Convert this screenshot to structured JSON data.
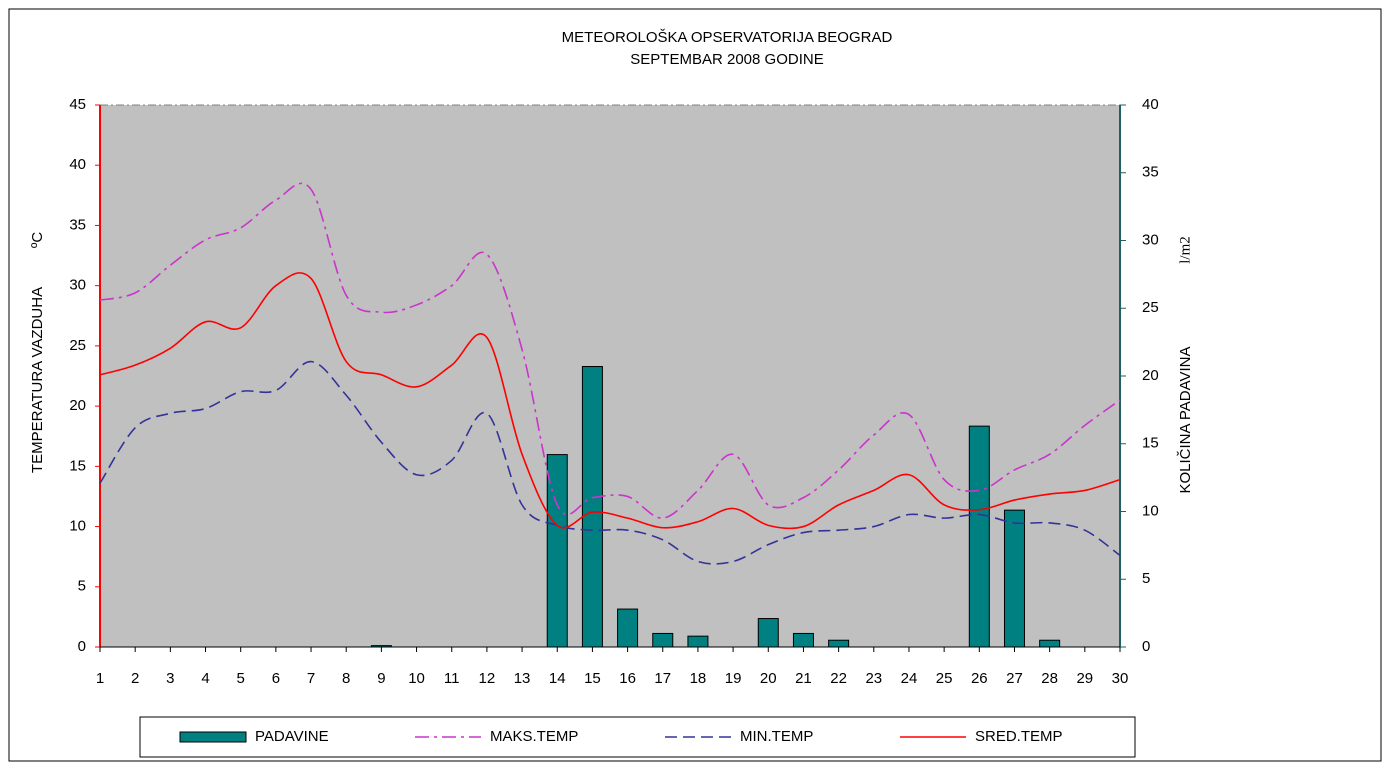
{
  "chart_data": {
    "type": "combo",
    "title": "METEOROLOŠKA OPSERVATORIJA BEOGRAD",
    "subtitle": "SEPTEMBAR 2008 GODINE",
    "ylabel": "TEMPERATURA VAZDUHA",
    "ylabel_unit": "ºC",
    "y2label": "KOLIČINA PADAVINA",
    "y2label_unit": "l/m2",
    "x": [
      1,
      2,
      3,
      4,
      5,
      6,
      7,
      8,
      9,
      10,
      11,
      12,
      13,
      14,
      15,
      16,
      17,
      18,
      19,
      20,
      21,
      22,
      23,
      24,
      25,
      26,
      27,
      28,
      29,
      30
    ],
    "xlim": [
      1,
      30
    ],
    "xticks": [
      1,
      2,
      3,
      4,
      5,
      6,
      7,
      8,
      9,
      10,
      11,
      12,
      13,
      14,
      15,
      16,
      17,
      18,
      19,
      20,
      21,
      22,
      23,
      24,
      25,
      26,
      27,
      28,
      29,
      30
    ],
    "ylim": [
      0,
      45
    ],
    "yticks": [
      0,
      5,
      10,
      15,
      20,
      25,
      30,
      35,
      40,
      45
    ],
    "y2lim": [
      0,
      40
    ],
    "y2ticks": [
      0,
      5,
      10,
      15,
      20,
      25,
      30,
      35,
      40
    ],
    "background": "#c0c0c0",
    "series": [
      {
        "name": "PADAVINE",
        "type": "bar",
        "axis": "y2",
        "color": "#008080",
        "values": [
          0,
          0,
          0,
          0,
          0,
          0,
          0,
          0,
          0.1,
          0,
          0,
          0,
          0,
          14.2,
          20.7,
          2.8,
          1.0,
          0.8,
          0,
          2.1,
          1.0,
          0.5,
          0,
          0,
          0,
          16.3,
          10.1,
          0.5,
          0,
          0
        ]
      },
      {
        "name": "MAKS.TEMP",
        "type": "line",
        "color": "#cc33cc",
        "dash": "dash-dot",
        "values": [
          28.8,
          29.4,
          31.7,
          33.8,
          34.8,
          37.1,
          38,
          29.2,
          27.8,
          28.4,
          30,
          32.6,
          24.7,
          11.8,
          12.4,
          12.5,
          10.7,
          13,
          16,
          11.8,
          12.4,
          14.7,
          17.6,
          19.3,
          13.9,
          13,
          14.7,
          16,
          18.4,
          20.5
        ]
      },
      {
        "name": "MIN.TEMP",
        "type": "line",
        "color": "#333399",
        "dash": "dashed",
        "values": [
          13.6,
          18.2,
          19.4,
          19.8,
          21.2,
          21.3,
          23.7,
          20.9,
          17,
          14.3,
          15.5,
          19.4,
          11.8,
          10.1,
          9.7,
          9.7,
          8.9,
          7.1,
          7.1,
          8.5,
          9.5,
          9.7,
          10,
          11,
          10.7,
          11,
          10.3,
          10.3,
          9.7,
          7.6
        ]
      },
      {
        "name": "SRED.TEMP",
        "type": "line",
        "color": "#ff0000",
        "dash": "solid",
        "values": [
          22.6,
          23.4,
          24.8,
          27,
          26.5,
          30,
          30.6,
          23.7,
          22.6,
          21.6,
          23.4,
          25.7,
          16,
          10.1,
          11.2,
          10.7,
          9.9,
          10.4,
          11.5,
          10.1,
          10,
          11.8,
          13,
          14.3,
          11.8,
          11.4,
          12.2,
          12.7,
          13,
          13.9
        ]
      }
    ]
  }
}
